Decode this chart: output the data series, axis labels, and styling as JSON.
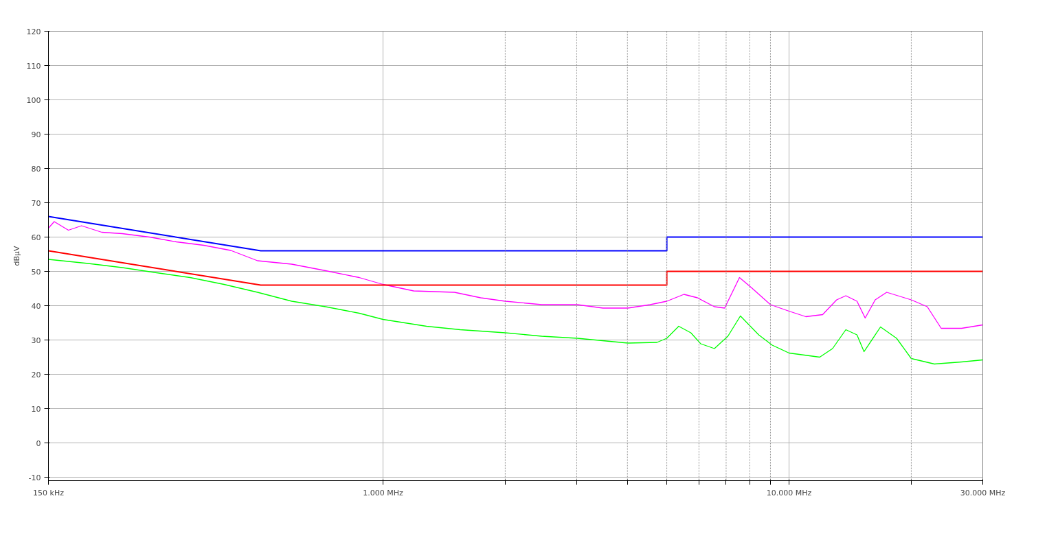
{
  "chart_data": {
    "type": "line",
    "ylabel": "dBµV",
    "log": "x",
    "grid": true,
    "line_style": "solid",
    "xlim": [
      150,
      30000
    ],
    "ylim": [
      -11,
      120
    ],
    "xticks": [
      {
        "value": 150,
        "label": "150 kHz"
      },
      {
        "value": 1000,
        "label": "1.000 MHz"
      },
      {
        "value": 2000,
        "label": null
      },
      {
        "value": 3000,
        "label": null
      },
      {
        "value": 4000,
        "label": null
      },
      {
        "value": 5000,
        "label": null
      },
      {
        "value": 6000,
        "label": null
      },
      {
        "value": 7000,
        "label": null
      },
      {
        "value": 8000,
        "label": null
      },
      {
        "value": 9000,
        "label": null
      },
      {
        "value": 10000,
        "label": "10.000 MHz"
      },
      {
        "value": 20000,
        "label": null
      },
      {
        "value": 30000,
        "label": "30.000 MHz"
      }
    ],
    "yticks": [
      -10,
      0,
      10,
      20,
      30,
      40,
      50,
      60,
      70,
      80,
      90,
      100,
      110,
      120
    ],
    "series": [
      {
        "color": "#ff00ff",
        "x": [
          150,
          155,
          168,
          181,
          203,
          228,
          266,
          310,
          362,
          422,
          491,
          596,
          722,
          874,
          1000,
          1190,
          1500,
          1740,
          2000,
          2460,
          3010,
          3480,
          4010,
          4550,
          5000,
          5510,
          5950,
          6550,
          6940,
          7550,
          8090,
          9000,
          10000,
          11000,
          12100,
          13100,
          13800,
          14700,
          15400,
          16300,
          17400,
          20000,
          21900,
          23700,
          26600,
          30000
        ],
        "values": [
          62.6,
          64.5,
          62,
          63.3,
          61.4,
          61,
          60,
          58.6,
          57.6,
          56.1,
          53.1,
          52.1,
          50.2,
          48.2,
          46.2,
          44.3,
          43.9,
          42.3,
          41.3,
          40.3,
          40.3,
          39.3,
          39.3,
          40.3,
          41.3,
          43.3,
          42.3,
          39.7,
          39.3,
          48.2,
          45.2,
          40.3,
          38.4,
          36.8,
          37.4,
          41.7,
          42.9,
          41.3,
          36.4,
          41.7,
          43.9,
          41.7,
          39.7,
          33.4,
          33.4,
          34.4
        ]
      },
      {
        "color": "#00ff00",
        "x": [
          150,
          188,
          228,
          277,
          335,
          406,
          491,
          596,
          722,
          874,
          1000,
          1280,
          1550,
          2000,
          2460,
          3010,
          4010,
          4730,
          5000,
          5350,
          5730,
          6060,
          6550,
          7070,
          7590,
          8420,
          9090,
          10000,
          11900,
          12800,
          13800,
          14700,
          15300,
          16800,
          18400,
          20000,
          22800,
          26600,
          30000
        ],
        "values": [
          53.5,
          52.3,
          51.1,
          49.6,
          48.2,
          46.2,
          43.9,
          41.3,
          39.7,
          37.8,
          36,
          34,
          33,
          32.1,
          31.1,
          30.5,
          29.1,
          29.3,
          30.5,
          34,
          32.1,
          28.9,
          27.5,
          31.1,
          37,
          31.5,
          28.5,
          26.2,
          25,
          27.5,
          33,
          31.5,
          26.6,
          33.8,
          30.5,
          24.6,
          23,
          23.6,
          24.2
        ]
      },
      {
        "color": "#0000ff",
        "x": [
          150,
          500,
          5000,
          5000,
          30000
        ],
        "values": [
          66,
          56,
          56,
          60,
          60
        ]
      },
      {
        "color": "#ff0000",
        "x": [
          150,
          500,
          5000,
          5000,
          30000
        ],
        "values": [
          56,
          46,
          46,
          50,
          50
        ]
      }
    ]
  }
}
